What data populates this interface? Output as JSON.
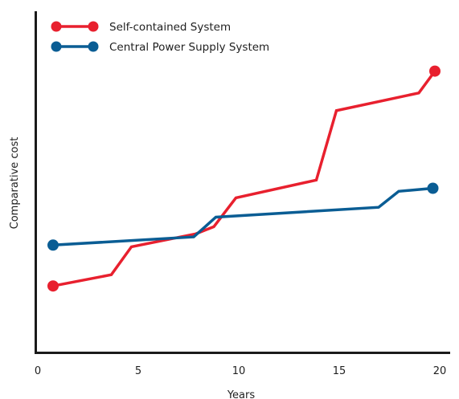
{
  "chart_data": {
    "type": "line",
    "title": "",
    "xlabel": "Years",
    "ylabel": "Comparative cost",
    "xlim": [
      0,
      20
    ],
    "xticks": [
      0,
      5,
      10,
      15,
      20
    ],
    "xtick_labels": [
      "0",
      "5",
      "10",
      "15",
      "20"
    ],
    "ylim": [
      0,
      100
    ],
    "y_ticks_shown": false,
    "y_units": "relative (no scale shown)",
    "grid": false,
    "legend_position": "top-left",
    "series": [
      {
        "name": "Self-contained System",
        "color": "#e8202e",
        "marker": "circle",
        "markers_at_endpoints": true,
        "x": [
          0.8,
          3.7,
          4.7,
          7.9,
          8.8,
          9.9,
          13.9,
          14.9,
          19.0,
          19.8
        ],
        "y": [
          19.3,
          22.6,
          30.8,
          34.6,
          36.7,
          45.2,
          50.4,
          70.8,
          76.0,
          82.4
        ]
      },
      {
        "name": "Central Power Supply System",
        "color": "#0a5d94",
        "marker": "circle",
        "markers_at_endpoints": true,
        "x": [
          0.8,
          7.8,
          8.9,
          17.0,
          18.0,
          19.7
        ],
        "y": [
          31.3,
          33.7,
          39.5,
          42.4,
          47.1,
          48.0
        ]
      }
    ]
  }
}
